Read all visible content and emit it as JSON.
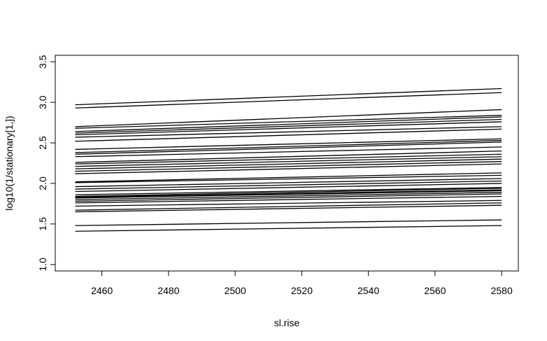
{
  "chart_data": {
    "type": "line",
    "title": "",
    "xlabel": "sl.rise",
    "ylabel": "log10(1/stationary[1,])",
    "xlim": [
      2446,
      2585
    ],
    "ylim": [
      0.92,
      3.58
    ],
    "xticks": [
      "2460",
      "2480",
      "2500",
      "2520",
      "2540",
      "2560",
      "2580"
    ],
    "yticks": [
      "1.0",
      "1.5",
      "2.0",
      "2.5",
      "3.0",
      "3.5"
    ],
    "grid": false,
    "legend": "none",
    "line_color": "#000000",
    "x": [
      2452,
      2580
    ],
    "series": [
      {
        "values": [
          2.97,
          3.17
        ]
      },
      {
        "values": [
          2.93,
          3.12
        ]
      },
      {
        "values": [
          2.7,
          2.91
        ]
      },
      {
        "values": [
          2.68,
          2.84
        ]
      },
      {
        "values": [
          2.64,
          2.82
        ]
      },
      {
        "values": [
          2.62,
          2.79
        ]
      },
      {
        "values": [
          2.6,
          2.76
        ]
      },
      {
        "values": [
          2.57,
          2.7
        ]
      },
      {
        "values": [
          2.52,
          2.67
        ]
      },
      {
        "values": [
          2.42,
          2.55
        ]
      },
      {
        "values": [
          2.38,
          2.53
        ]
      },
      {
        "values": [
          2.36,
          2.51
        ]
      },
      {
        "values": [
          2.33,
          2.45
        ]
      },
      {
        "values": [
          2.26,
          2.4
        ]
      },
      {
        "values": [
          2.24,
          2.36
        ]
      },
      {
        "values": [
          2.21,
          2.33
        ]
      },
      {
        "values": [
          2.18,
          2.3
        ]
      },
      {
        "values": [
          2.15,
          2.27
        ]
      },
      {
        "values": [
          2.12,
          2.24
        ]
      },
      {
        "values": [
          2.02,
          2.13
        ]
      },
      {
        "values": [
          2.01,
          2.1
        ]
      },
      {
        "values": [
          1.96,
          2.06
        ]
      },
      {
        "values": [
          1.93,
          2.03
        ]
      },
      {
        "values": [
          1.9,
          2.0
        ]
      },
      {
        "values": [
          1.86,
          1.95
        ]
      },
      {
        "values": [
          1.84,
          1.94
        ]
      },
      {
        "values": [
          1.83,
          1.92
        ]
      },
      {
        "values": [
          1.82,
          1.91
        ]
      },
      {
        "values": [
          1.8,
          1.89
        ]
      },
      {
        "values": [
          1.78,
          1.87
        ]
      },
      {
        "values": [
          1.76,
          1.84
        ]
      },
      {
        "values": [
          1.72,
          1.79
        ]
      },
      {
        "values": [
          1.67,
          1.76
        ]
      },
      {
        "values": [
          1.65,
          1.73
        ]
      },
      {
        "values": [
          1.48,
          1.55
        ]
      },
      {
        "values": [
          1.41,
          1.48
        ]
      }
    ]
  }
}
